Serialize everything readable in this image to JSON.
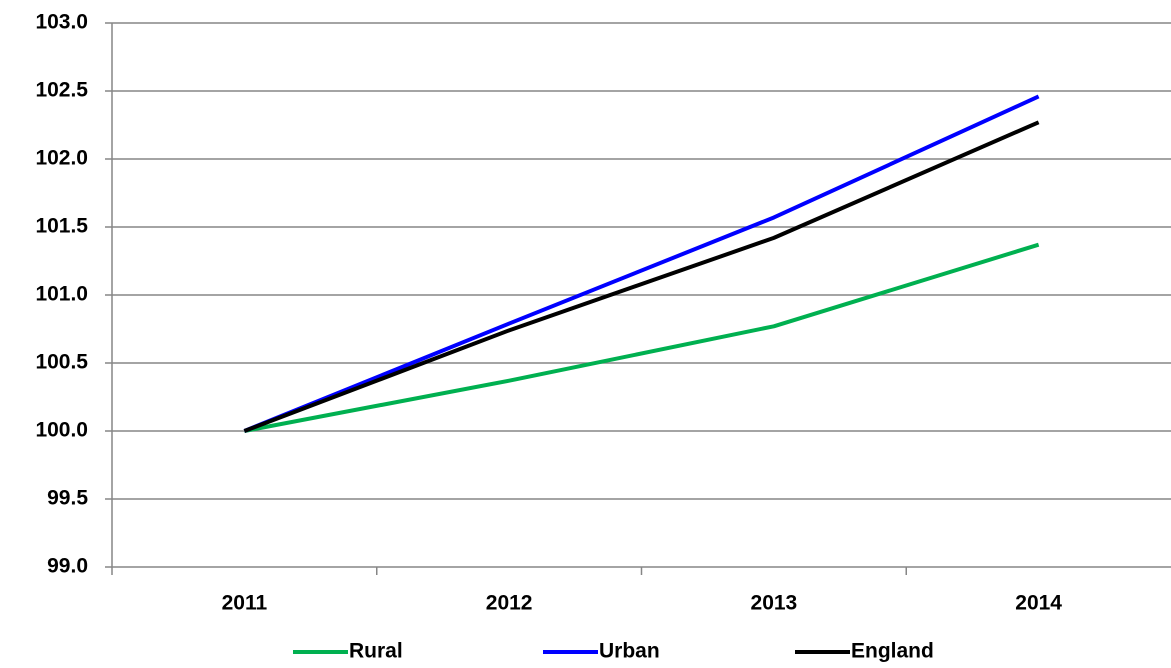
{
  "chart_data": {
    "type": "line",
    "categories": [
      "2011",
      "2012",
      "2013",
      "2014"
    ],
    "series": [
      {
        "name": "Rural",
        "color": "#00b050",
        "values": [
          100.0,
          100.37,
          100.77,
          101.37
        ]
      },
      {
        "name": "Urban",
        "color": "#0000ff",
        "values": [
          100.0,
          100.79,
          101.57,
          102.46
        ]
      },
      {
        "name": "England",
        "color": "#000000",
        "values": [
          100.0,
          100.74,
          101.42,
          102.27
        ]
      }
    ],
    "ylim": [
      99.0,
      103.0
    ],
    "yticks": [
      {
        "value": 99.0,
        "label": "99.0"
      },
      {
        "value": 99.5,
        "label": "99.5"
      },
      {
        "value": 100.0,
        "label": "100.0"
      },
      {
        "value": 100.5,
        "label": "100.5"
      },
      {
        "value": 101.0,
        "label": "101.0"
      },
      {
        "value": 101.5,
        "label": "101.5"
      },
      {
        "value": 102.0,
        "label": "102.0"
      },
      {
        "value": 102.5,
        "label": "102.5"
      },
      {
        "value": 103.0,
        "label": "103.0"
      }
    ],
    "grid": true,
    "legend": "bottom"
  }
}
